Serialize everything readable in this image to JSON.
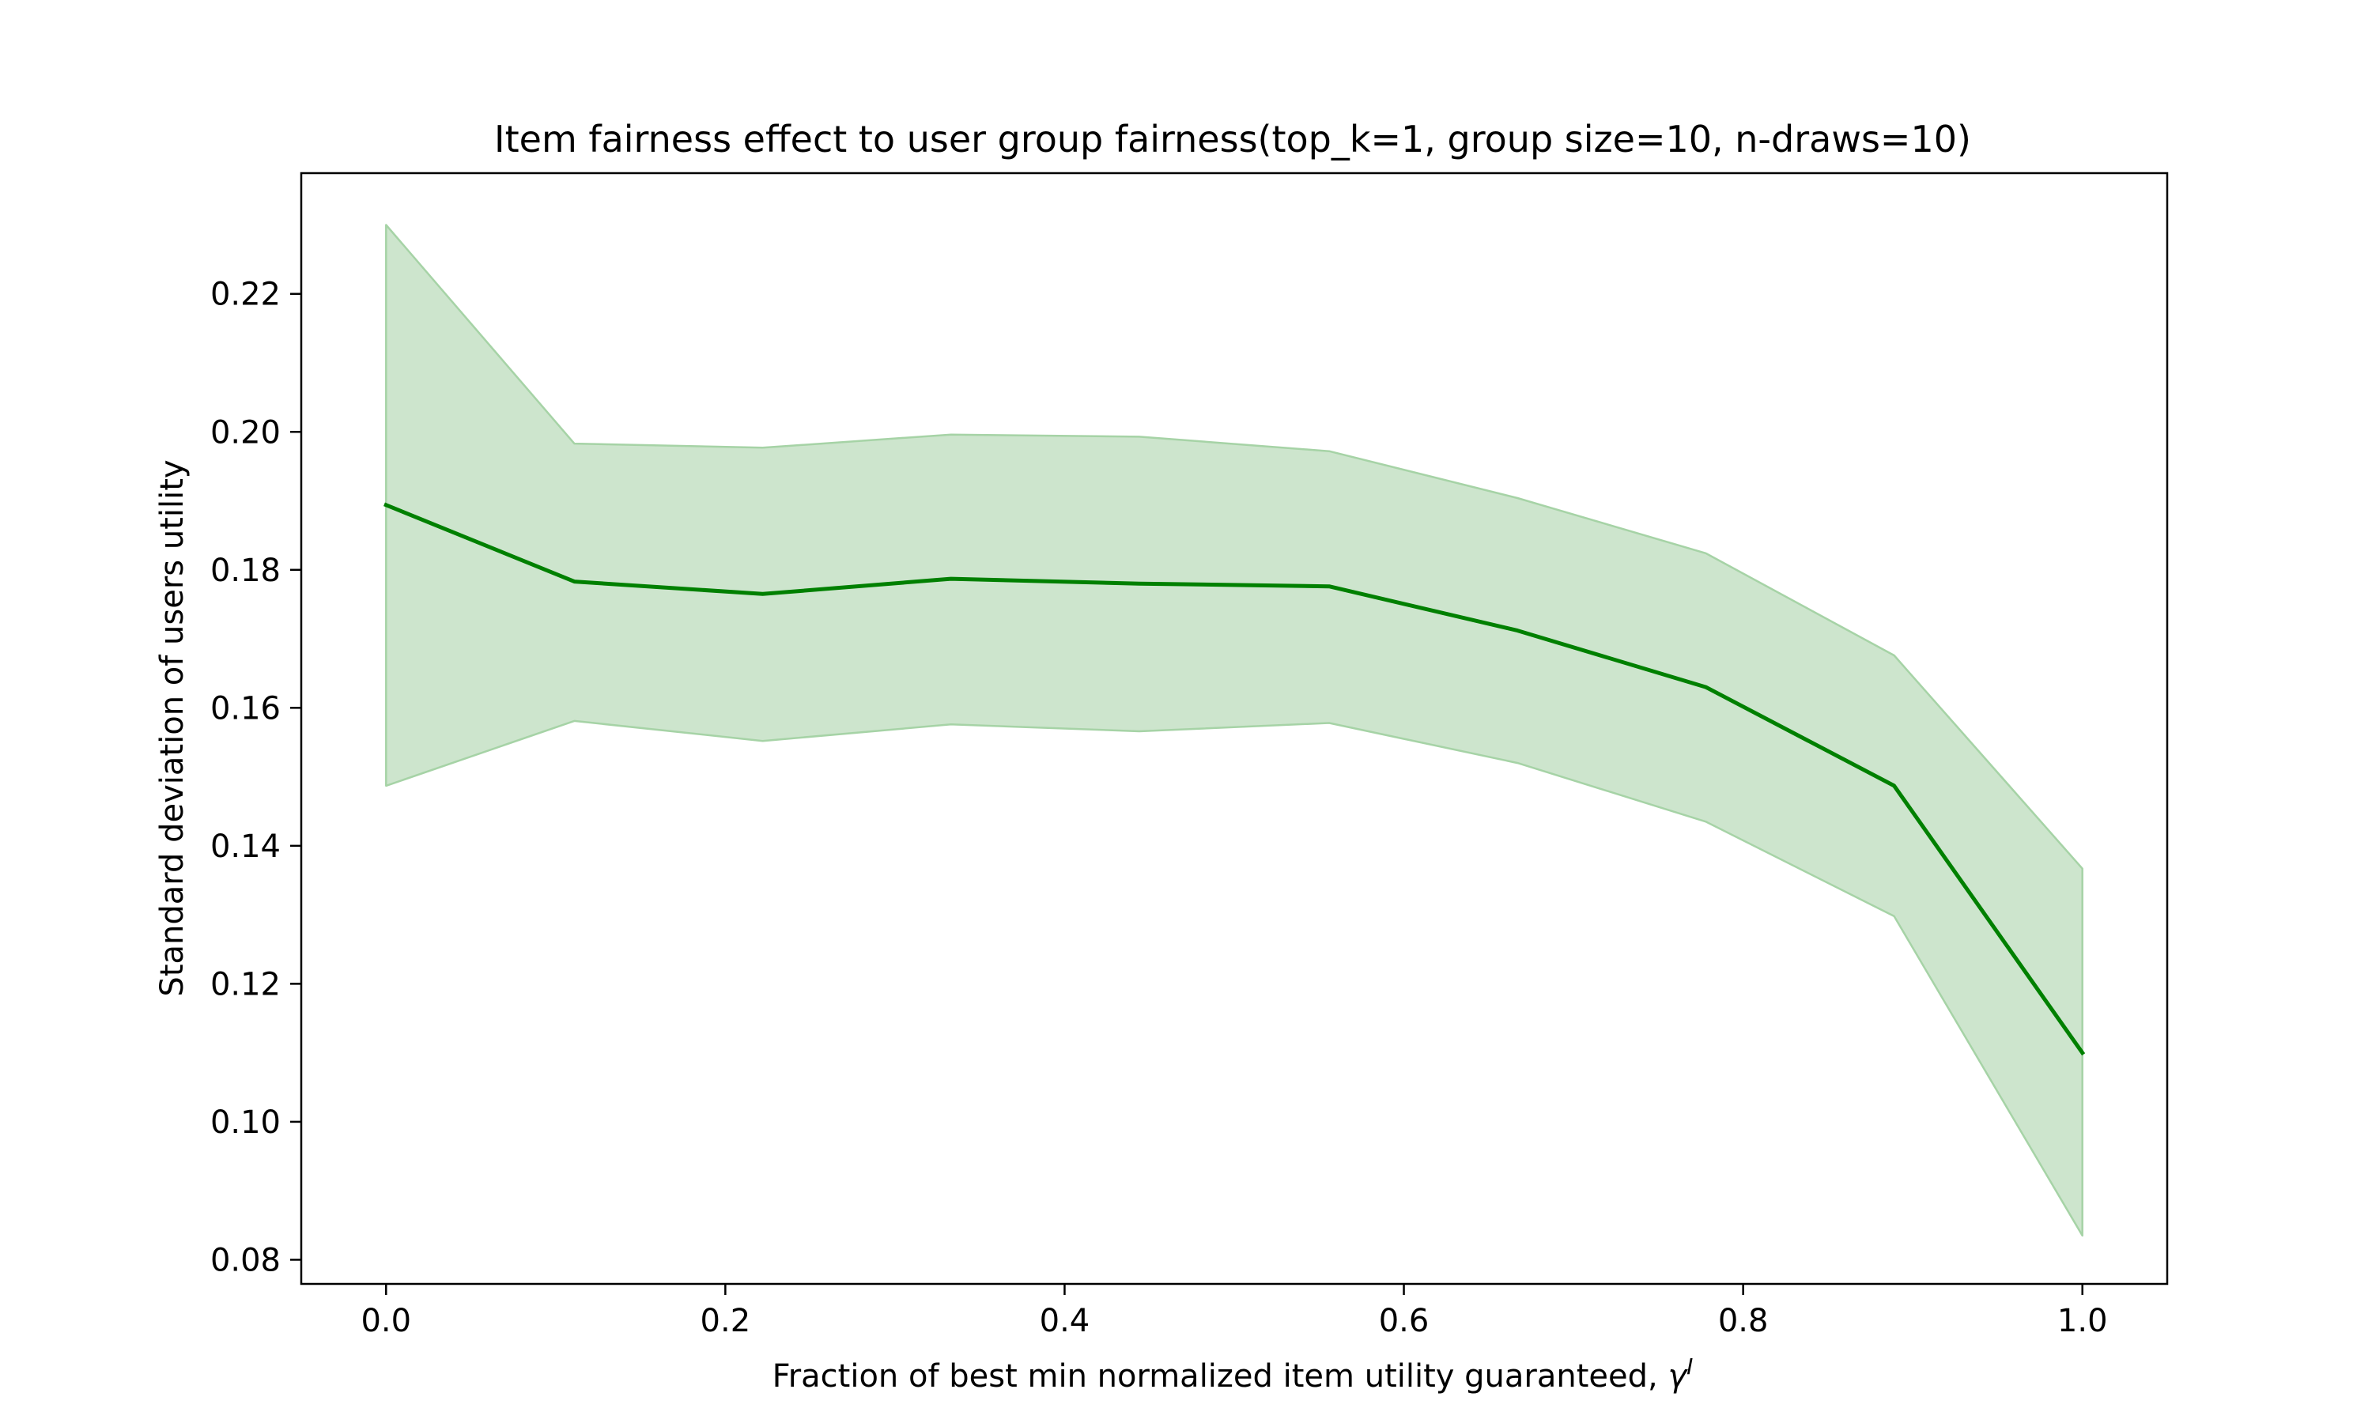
{
  "chart_data": {
    "type": "line",
    "title": "Item fairness effect to user group fairness(top_k=1, group size=10, n-draws=10)",
    "xlabel_main": "Fraction of best min normalized item utility guaranteed, ",
    "xlabel_symbol": "γ",
    "xlabel_superscript": "I",
    "ylabel": "Standard deviation of users utility",
    "xlim": [
      -0.05,
      1.05
    ],
    "ylim": [
      0.0765,
      0.2375
    ],
    "x_ticks": [
      0.0,
      0.2,
      0.4,
      0.6,
      0.8,
      1.0
    ],
    "x_tick_labels": [
      "0.0",
      "0.2",
      "0.4",
      "0.6",
      "0.8",
      "1.0"
    ],
    "y_ticks": [
      0.08,
      0.1,
      0.12,
      0.14,
      0.16,
      0.18,
      0.2,
      0.22
    ],
    "y_tick_labels": [
      "0.08",
      "0.10",
      "0.12",
      "0.14",
      "0.16",
      "0.18",
      "0.20",
      "0.22"
    ],
    "grid": false,
    "line_color": "#008000",
    "band_fill_color": "#cde5cd",
    "band_edge_color": "#a6d3a6",
    "series": [
      {
        "x": [
          0.0,
          0.111,
          0.222,
          0.333,
          0.444,
          0.556,
          0.667,
          0.778,
          0.889,
          1.0
        ],
        "y": [
          0.1894,
          0.1783,
          0.1765,
          0.1787,
          0.178,
          0.1776,
          0.1712,
          0.163,
          0.1487,
          0.11
        ],
        "lower": [
          0.1487,
          0.1581,
          0.1552,
          0.1576,
          0.1566,
          0.1578,
          0.152,
          0.1435,
          0.1298,
          0.0835
        ],
        "upper": [
          0.23,
          0.1983,
          0.1977,
          0.1996,
          0.1993,
          0.1972,
          0.1904,
          0.1824,
          0.1676,
          0.1367
        ]
      }
    ]
  }
}
